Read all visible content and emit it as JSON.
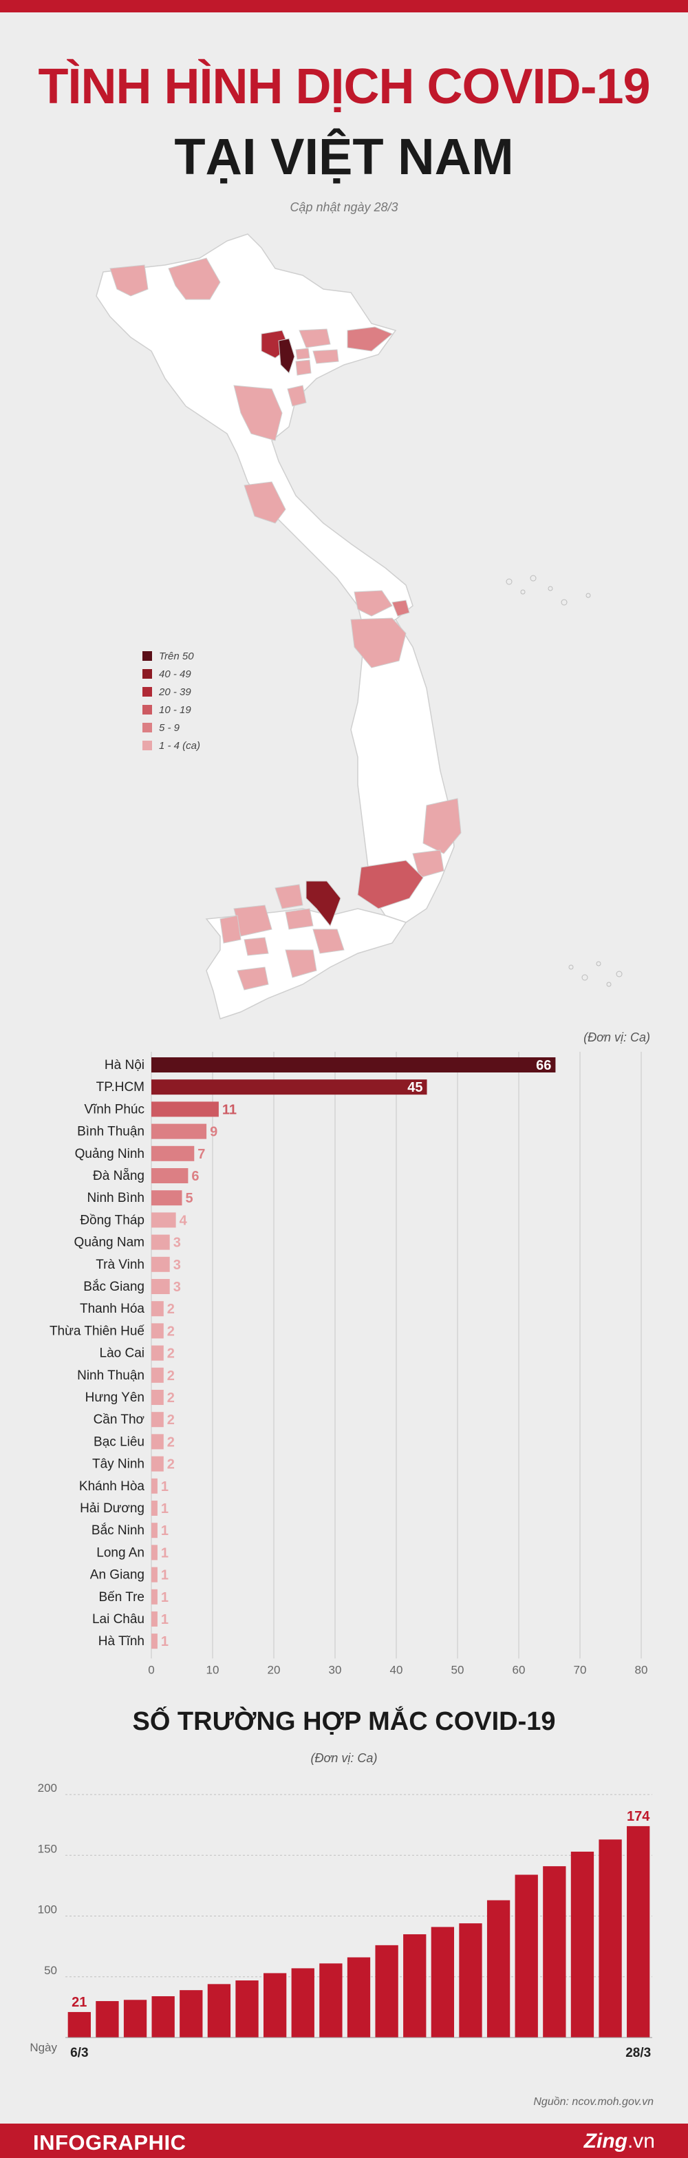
{
  "header": {
    "title_line1": "TÌNH HÌNH DỊCH COVID-19",
    "title_line2": "TẠI VIỆT NAM",
    "updated": "Cập nhật ngày 28/3"
  },
  "legend": [
    {
      "label": "Trên 50",
      "color": "#5a0f18"
    },
    {
      "label": "40 - 49",
      "color": "#8c1a24"
    },
    {
      "label": "20 - 39",
      "color": "#b02a36"
    },
    {
      "label": "10 - 19",
      "color": "#cd5a62"
    },
    {
      "label": "5 - 9",
      "color": "#dc7f84"
    },
    {
      "label": "1 - 4 (ca)",
      "color": "#e9a7aa"
    }
  ],
  "colors": {
    "accent": "#c0182b",
    "map_fill": "#ffffff",
    "map_stroke": "#cfcfcf"
  },
  "bar_unit": "(Đơn vị: Ca)",
  "chart_data": [
    {
      "type": "bar",
      "orientation": "horizontal",
      "categories": [
        "Hà Nội",
        "TP.HCM",
        "Vĩnh Phúc",
        "Bình Thuận",
        "Quảng Ninh",
        "Đà Nẵng",
        "Ninh Bình",
        "Đồng Tháp",
        "Quảng Nam",
        "Trà Vinh",
        "Bắc Giang",
        "Thanh Hóa",
        "Thừa Thiên Huế",
        "Lào Cai",
        "Ninh Thuận",
        "Hưng Yên",
        "Cần Thơ",
        "Bạc Liêu",
        "Tây Ninh",
        "Khánh Hòa",
        "Hải Dương",
        "Bắc Ninh",
        "Long An",
        "An Giang",
        "Bến Tre",
        "Lai Châu",
        "Hà Tĩnh"
      ],
      "values": [
        66,
        45,
        11,
        9,
        7,
        6,
        5,
        4,
        3,
        3,
        3,
        2,
        2,
        2,
        2,
        2,
        2,
        2,
        2,
        1,
        1,
        1,
        1,
        1,
        1,
        1,
        1
      ],
      "xlim": [
        0,
        80
      ],
      "xticks": [
        0,
        10,
        20,
        30,
        40,
        50,
        60,
        70,
        80
      ],
      "grid": true
    },
    {
      "type": "bar",
      "title": "SỐ TRƯỜNG HỢP MẮC COVID-19",
      "unit": "(Đơn vị: Ca)",
      "xlabel": "Ngày",
      "first_label": "6/3",
      "last_label": "28/3",
      "values": [
        21,
        30,
        31,
        34,
        39,
        44,
        47,
        53,
        57,
        61,
        66,
        76,
        85,
        91,
        94,
        113,
        134,
        141,
        153,
        163,
        174
      ],
      "ylim": [
        0,
        200
      ],
      "yticks": [
        50,
        100,
        150,
        200
      ],
      "annotated": [
        21,
        174
      ],
      "color": "#c0182b",
      "grid": true
    }
  ],
  "footer": {
    "left": "INFOGRAPHIC",
    "brand_bold": "Zing",
    "brand_rest": ".vn"
  },
  "source": "Nguồn: ncov.moh.gov.vn"
}
